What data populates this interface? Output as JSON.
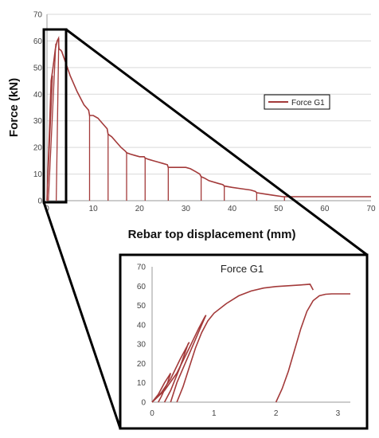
{
  "colors": {
    "series": "#A33A3A",
    "grid": "#d9d9d9",
    "axis": "#9a9a9a",
    "frame": "#000000"
  },
  "chart_data": [
    {
      "type": "line",
      "title": "",
      "xlabel": "Rebar top displacement (mm)",
      "ylabel": "Force (kN)",
      "xlim": [
        0,
        70
      ],
      "ylim": [
        0,
        70
      ],
      "x_ticks": [
        "0",
        "10",
        "20",
        "30",
        "40",
        "50",
        "60",
        "70"
      ],
      "y_ticks": [
        "0",
        "10",
        "20",
        "30",
        "40",
        "50",
        "60",
        "70"
      ],
      "grid": "horizontal",
      "legend": {
        "entries": [
          "Force G1"
        ],
        "placement": "right"
      },
      "series": [
        {
          "name": "Force G1",
          "x": [
            0,
            0.3,
            0.6,
            0.9,
            1.3,
            1.8,
            2.2,
            2.5,
            2.55,
            2.6,
            3,
            3.2,
            4,
            5,
            5.5,
            6.5,
            8,
            9,
            9.2,
            10,
            11,
            12,
            13,
            13.2,
            14,
            15,
            16,
            17,
            17.2,
            18,
            19,
            20,
            21,
            21.2,
            22,
            23,
            24,
            25,
            26,
            26.2,
            27,
            28,
            29,
            30,
            31,
            32,
            33,
            33.3,
            34,
            35,
            37,
            38,
            38.3,
            40,
            42,
            44,
            45,
            45.3,
            47,
            49,
            51,
            51.3,
            53,
            55,
            58,
            60,
            62,
            64,
            66,
            68,
            70
          ],
          "y": [
            0,
            15,
            30,
            45,
            50,
            57,
            60,
            61,
            58,
            57,
            56.5,
            56,
            52,
            47,
            45,
            41,
            36,
            34,
            32,
            32,
            31,
            29,
            27,
            25,
            24,
            22,
            20,
            18.5,
            18,
            17.5,
            17,
            16.5,
            16.5,
            16,
            15.5,
            15,
            14.5,
            14,
            13.5,
            12.5,
            12.5,
            12.5,
            12.5,
            12.5,
            12,
            11,
            10,
            9,
            8.5,
            7.5,
            6.5,
            6,
            5.5,
            5,
            4.5,
            4,
            3.5,
            3,
            2.5,
            2,
            1.5,
            1.5,
            1.5,
            1.5,
            1.5,
            1.5,
            1.5,
            1.5,
            1.5,
            1.5,
            1.5
          ]
        }
      ],
      "unloading_drops_x": [
        9.2,
        13.2,
        17.2,
        21.2,
        26.2,
        33.3,
        38.3,
        45.3,
        51.3
      ]
    },
    {
      "type": "line",
      "title": "Force G1",
      "xlabel": "",
      "ylabel": "",
      "xlim": [
        0,
        3.2
      ],
      "ylim": [
        0,
        70
      ],
      "x_ticks": [
        "0",
        "1",
        "2",
        "3"
      ],
      "y_ticks": [
        "0",
        "10",
        "20",
        "30",
        "40",
        "50",
        "60",
        "70"
      ],
      "grid": "none",
      "series": [
        {
          "name": "Force G1",
          "x": [
            0.4,
            0.5,
            0.6,
            0.7,
            0.8,
            0.9,
            1.0,
            1.2,
            1.4,
            1.6,
            1.8,
            2.0,
            2.2,
            2.4,
            2.55,
            2.6
          ],
          "y": [
            0,
            8,
            18,
            28,
            36,
            42,
            46,
            51,
            55,
            57.5,
            59,
            59.8,
            60.2,
            60.6,
            61,
            58
          ]
        },
        {
          "name": "",
          "x": [
            2.0,
            2.1,
            2.2,
            2.3,
            2.4,
            2.5,
            2.6,
            2.7,
            2.8,
            2.9,
            3.0,
            3.1,
            3.2
          ],
          "y": [
            0,
            7,
            16,
            27,
            38,
            47,
            52.5,
            55,
            55.8,
            56,
            56,
            56,
            56
          ]
        },
        {
          "name": "",
          "x": [
            0.0,
            0.2,
            0.4,
            0.6,
            0.75,
            0.85,
            0.87,
            0.8,
            0.6,
            0.4,
            0.3
          ],
          "y": [
            0,
            6,
            15,
            28,
            38,
            44,
            45,
            40,
            25,
            10,
            0
          ]
        },
        {
          "name": "",
          "x": [
            0.0,
            0.15,
            0.3,
            0.45,
            0.55,
            0.6,
            0.58,
            0.45,
            0.3,
            0.2
          ],
          "y": [
            0,
            5,
            12,
            22,
            28,
            31,
            30,
            18,
            6,
            0
          ]
        },
        {
          "name": "",
          "x": [
            0.0,
            0.1,
            0.2,
            0.28,
            0.3,
            0.25,
            0.15,
            0.1
          ],
          "y": [
            0,
            4,
            10,
            14,
            15,
            10,
            3,
            0
          ]
        }
      ]
    }
  ]
}
